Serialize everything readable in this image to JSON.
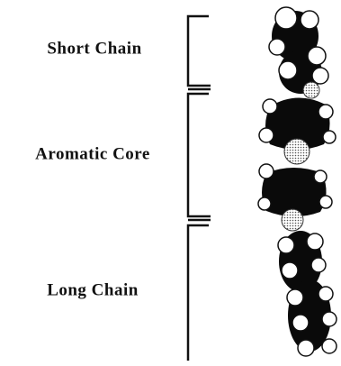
{
  "labels": {
    "short_chain": "Short Chain",
    "aromatic_core": "Aromatic Core",
    "long_chain": "Long Chain"
  }
}
